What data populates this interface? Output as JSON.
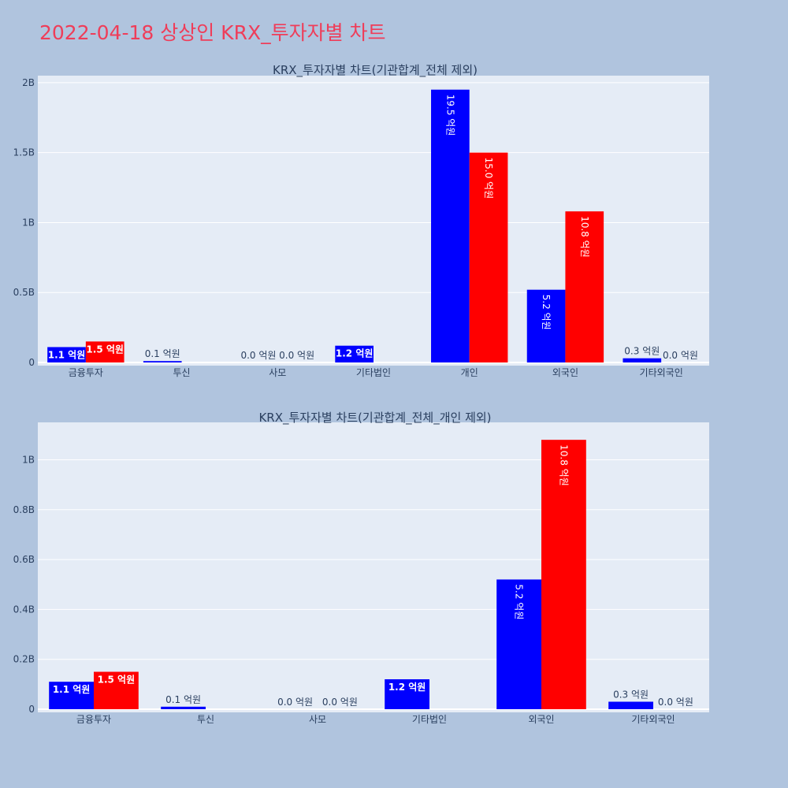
{
  "page": {
    "title": "2022-04-18 상상인 KRX_투자자별 차트",
    "background": "#b0c4de",
    "title_color": "#ef3d59",
    "plot_background": "#e5ecf6",
    "series_colors": [
      "#0000ff",
      "#ff0000"
    ]
  },
  "chart_data": [
    {
      "type": "bar",
      "title": "KRX_투자자별 차트(기관합계_전체 제외)",
      "categories": [
        "금융투자",
        "투신",
        "사모",
        "기타법인",
        "개인",
        "외국인",
        "기타외국인"
      ],
      "series": [
        {
          "values": [
            110000000,
            10000000,
            0,
            120000000,
            1950000000,
            520000000,
            30000000
          ],
          "labels": [
            "1.1 억원",
            "0.1 억원",
            "0.0 억원",
            "1.2 억원",
            "19.5 억원",
            "5.2 억원",
            "0.3 억원"
          ]
        },
        {
          "values": [
            150000000,
            null,
            0,
            null,
            1500000000,
            1080000000,
            0
          ],
          "labels": [
            "1.5 억원",
            null,
            "0.0 억원",
            null,
            "15.0 억원",
            "10.8 억원",
            "0.0 억원"
          ]
        }
      ],
      "ylim": [
        0,
        2050000000
      ],
      "yticks": [
        0,
        500000000,
        1000000000,
        1500000000,
        2000000000
      ],
      "ytick_labels": [
        "0",
        "0.5B",
        "1B",
        "1.5B",
        "2B"
      ],
      "grid": true,
      "legend": "none"
    },
    {
      "type": "bar",
      "title": "KRX_투자자별 차트(기관합계_전체_개인 제외)",
      "categories": [
        "금융투자",
        "투신",
        "사모",
        "기타법인",
        "외국인",
        "기타외국인"
      ],
      "series": [
        {
          "values": [
            110000000,
            10000000,
            0,
            120000000,
            520000000,
            30000000
          ],
          "labels": [
            "1.1 억원",
            "0.1 억원",
            "0.0 억원",
            "1.2 억원",
            "5.2 억원",
            "0.3 억원"
          ]
        },
        {
          "values": [
            150000000,
            null,
            0,
            null,
            1080000000,
            0
          ],
          "labels": [
            "1.5 억원",
            null,
            "0.0 억원",
            null,
            "10.8 억원",
            "0.0 억원"
          ]
        }
      ],
      "ylim": [
        0,
        1150000000
      ],
      "yticks": [
        0,
        200000000,
        400000000,
        600000000,
        800000000,
        1000000000
      ],
      "ytick_labels": [
        "0",
        "0.2B",
        "0.4B",
        "0.6B",
        "0.8B",
        "1B"
      ],
      "grid": true,
      "legend": "none"
    }
  ]
}
